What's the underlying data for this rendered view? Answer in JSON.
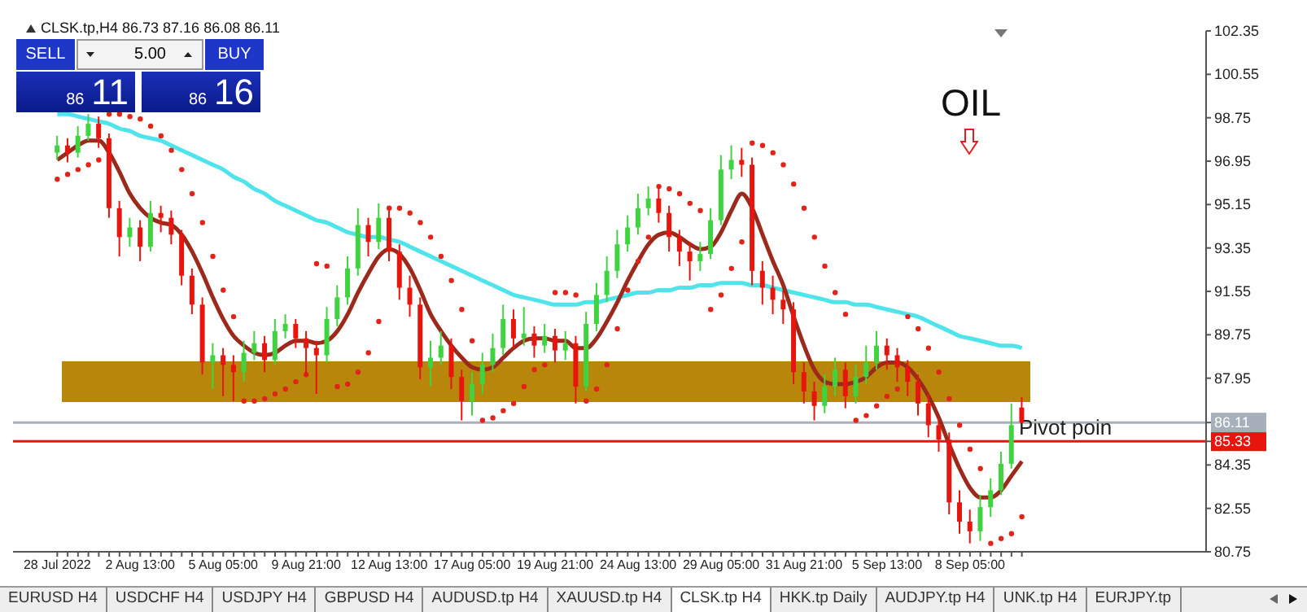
{
  "chart_data": {
    "type": "candlestick",
    "title": "CLSK.tp,H4  86.73 87.16 86.08 86.11",
    "categories": [
      "28 Jul 2022",
      null,
      null,
      null,
      null,
      null,
      null,
      null,
      "2 Aug 13:00",
      null,
      null,
      null,
      null,
      null,
      null,
      null,
      "5 Aug 05:00",
      null,
      null,
      null,
      null,
      null,
      null,
      null,
      "9 Aug 21:00",
      null,
      null,
      null,
      null,
      null,
      null,
      null,
      "12 Aug 13:00",
      null,
      null,
      null,
      null,
      null,
      null,
      null,
      "17 Aug 05:00",
      null,
      null,
      null,
      null,
      null,
      null,
      null,
      "19 Aug 21:00",
      null,
      null,
      null,
      null,
      null,
      null,
      null,
      "24 Aug 13:00",
      null,
      null,
      null,
      null,
      null,
      null,
      null,
      "29 Aug 05:00",
      null,
      null,
      null,
      null,
      null,
      null,
      null,
      "31 Aug 21:00",
      null,
      null,
      null,
      null,
      null,
      null,
      null,
      "5 Sep 13:00",
      null,
      null,
      null,
      null,
      null,
      null,
      null,
      "8 Sep 05:00",
      null,
      null,
      null,
      null,
      null
    ],
    "ohlc": [
      [
        97.3,
        98.0,
        97.0,
        97.6
      ],
      [
        97.6,
        97.9,
        96.9,
        97.3
      ],
      [
        97.3,
        98.4,
        97.1,
        98.0
      ],
      [
        98.0,
        98.9,
        97.8,
        98.5
      ],
      [
        98.5,
        98.8,
        97.5,
        97.9
      ],
      [
        97.9,
        98.1,
        94.6,
        95.0
      ],
      [
        95.0,
        95.3,
        93.0,
        93.8
      ],
      [
        93.8,
        94.6,
        93.4,
        94.2
      ],
      [
        94.2,
        94.5,
        92.8,
        93.4
      ],
      [
        93.4,
        95.3,
        93.2,
        94.8
      ],
      [
        94.8,
        95.1,
        94.0,
        94.6
      ],
      [
        94.6,
        94.9,
        93.5,
        93.9
      ],
      [
        93.9,
        94.1,
        91.8,
        92.2
      ],
      [
        92.2,
        92.5,
        90.6,
        91.0
      ],
      [
        91.0,
        91.3,
        88.1,
        88.6
      ],
      [
        88.6,
        89.4,
        87.5,
        88.9
      ],
      [
        88.9,
        89.2,
        87.2,
        88.5
      ],
      [
        88.5,
        88.9,
        87.0,
        88.2
      ],
      [
        88.2,
        89.5,
        87.8,
        89.0
      ],
      [
        89.0,
        89.9,
        88.7,
        89.4
      ],
      [
        89.4,
        89.7,
        88.2,
        88.7
      ],
      [
        88.7,
        90.4,
        88.5,
        89.9
      ],
      [
        89.9,
        90.6,
        89.6,
        90.2
      ],
      [
        90.2,
        90.4,
        89.2,
        89.6
      ],
      [
        89.6,
        89.9,
        88.0,
        89.2
      ],
      [
        89.2,
        89.5,
        87.3,
        88.9
      ],
      [
        88.9,
        90.9,
        88.6,
        90.4
      ],
      [
        90.4,
        91.8,
        90.1,
        91.3
      ],
      [
        91.3,
        93.0,
        91.0,
        92.5
      ],
      [
        92.5,
        95.0,
        92.2,
        94.3
      ],
      [
        94.3,
        94.6,
        93.0,
        93.6
      ],
      [
        93.6,
        95.2,
        93.3,
        94.6
      ],
      [
        94.6,
        94.9,
        92.8,
        93.2
      ],
      [
        93.2,
        93.5,
        91.2,
        91.7
      ],
      [
        91.7,
        92.2,
        90.5,
        91.0
      ],
      [
        91.0,
        91.3,
        87.9,
        88.4
      ],
      [
        88.4,
        89.5,
        87.6,
        88.8
      ],
      [
        88.8,
        89.9,
        88.5,
        89.3
      ],
      [
        89.3,
        89.6,
        87.5,
        88.0
      ],
      [
        88.0,
        88.3,
        86.2,
        87.0
      ],
      [
        87.0,
        88.2,
        86.4,
        87.7
      ],
      [
        87.7,
        89.0,
        87.3,
        88.5
      ],
      [
        88.5,
        89.8,
        88.2,
        89.2
      ],
      [
        89.2,
        91.0,
        88.9,
        90.4
      ],
      [
        90.4,
        90.8,
        89.2,
        89.6
      ],
      [
        89.6,
        90.9,
        89.3,
        89.8
      ],
      [
        89.8,
        90.1,
        88.8,
        89.3
      ],
      [
        89.3,
        90.2,
        89.0,
        89.7
      ],
      [
        89.7,
        90.0,
        88.6,
        89.1
      ],
      [
        89.1,
        89.9,
        88.7,
        89.4
      ],
      [
        89.4,
        89.7,
        86.9,
        87.6
      ],
      [
        87.6,
        90.7,
        87.4,
        90.2
      ],
      [
        90.2,
        91.9,
        89.9,
        91.4
      ],
      [
        91.4,
        93.0,
        91.1,
        92.4
      ],
      [
        92.4,
        94.1,
        92.1,
        93.5
      ],
      [
        93.5,
        94.7,
        93.2,
        94.2
      ],
      [
        94.2,
        95.6,
        93.9,
        95.0
      ],
      [
        95.0,
        95.9,
        94.7,
        95.4
      ],
      [
        95.4,
        95.8,
        94.4,
        94.8
      ],
      [
        94.8,
        95.1,
        93.2,
        93.8
      ],
      [
        93.8,
        94.1,
        92.6,
        93.2
      ],
      [
        93.2,
        93.6,
        92.0,
        92.8
      ],
      [
        92.8,
        93.6,
        92.4,
        93.1
      ],
      [
        93.1,
        95.0,
        92.9,
        94.5
      ],
      [
        94.5,
        97.2,
        94.3,
        96.6
      ],
      [
        96.6,
        97.6,
        96.2,
        97.0
      ],
      [
        97.0,
        97.5,
        96.3,
        96.8
      ],
      [
        96.8,
        97.1,
        91.8,
        92.4
      ],
      [
        92.4,
        92.8,
        91.0,
        91.7
      ],
      [
        91.7,
        92.2,
        90.6,
        91.2
      ],
      [
        91.2,
        91.6,
        90.2,
        90.8
      ],
      [
        90.8,
        91.1,
        87.7,
        88.2
      ],
      [
        88.2,
        88.6,
        86.9,
        87.4
      ],
      [
        87.4,
        87.8,
        86.2,
        86.8
      ],
      [
        86.8,
        88.1,
        86.5,
        87.6
      ],
      [
        87.6,
        88.8,
        87.2,
        88.3
      ],
      [
        88.3,
        88.6,
        86.7,
        87.2
      ],
      [
        87.2,
        88.5,
        86.9,
        88.0
      ],
      [
        88.0,
        89.3,
        87.7,
        88.6
      ],
      [
        88.6,
        89.9,
        88.3,
        89.3
      ],
      [
        89.3,
        89.6,
        88.3,
        88.9
      ],
      [
        88.9,
        89.2,
        87.8,
        88.4
      ],
      [
        88.4,
        88.7,
        87.2,
        87.8
      ],
      [
        87.8,
        88.1,
        86.4,
        86.9
      ],
      [
        86.9,
        87.3,
        85.5,
        86.0
      ],
      [
        86.0,
        86.3,
        84.9,
        85.4
      ],
      [
        85.4,
        85.7,
        82.3,
        82.8
      ],
      [
        82.8,
        83.3,
        81.5,
        82.0
      ],
      [
        82.0,
        82.5,
        81.1,
        81.6
      ],
      [
        81.6,
        83.1,
        81.2,
        82.6
      ],
      [
        82.6,
        83.8,
        82.2,
        83.3
      ],
      [
        83.3,
        84.9,
        83.1,
        84.4
      ],
      [
        84.4,
        86.9,
        84.2,
        86.0
      ],
      [
        86.73,
        87.16,
        86.08,
        86.11
      ]
    ],
    "colors": [
      "#3fd43f",
      "#e8150f",
      "#3fd43f",
      "#3fd43f",
      "#e8150f",
      "#e8150f",
      "#e8150f",
      "#3fd43f",
      "#e8150f",
      "#3fd43f",
      "#e8150f",
      "#e8150f",
      "#e8150f",
      "#e8150f",
      "#e8150f",
      "#3fd43f",
      "#e8150f",
      "#e8150f",
      "#3fd43f",
      "#3fd43f",
      "#e8150f",
      "#3fd43f",
      "#3fd43f",
      "#e8150f",
      "#e8150f",
      "#e8150f",
      "#3fd43f",
      "#3fd43f",
      "#3fd43f",
      "#3fd43f",
      "#e8150f",
      "#3fd43f",
      "#e8150f",
      "#e8150f",
      "#e8150f",
      "#e8150f",
      "#3fd43f",
      "#3fd43f",
      "#e8150f",
      "#e8150f",
      "#3fd43f",
      "#3fd43f",
      "#3fd43f",
      "#3fd43f",
      "#e8150f",
      "#3fd43f",
      "#e8150f",
      "#3fd43f",
      "#e8150f",
      "#3fd43f",
      "#e8150f",
      "#3fd43f",
      "#3fd43f",
      "#3fd43f",
      "#3fd43f",
      "#3fd43f",
      "#3fd43f",
      "#3fd43f",
      "#e8150f",
      "#e8150f",
      "#e8150f",
      "#e8150f",
      "#3fd43f",
      "#3fd43f",
      "#3fd43f",
      "#3fd43f",
      "#e8150f",
      "#e8150f",
      "#e8150f",
      "#e8150f",
      "#e8150f",
      "#e8150f",
      "#e8150f",
      "#e8150f",
      "#3fd43f",
      "#3fd43f",
      "#e8150f",
      "#3fd43f",
      "#3fd43f",
      "#3fd43f",
      "#e8150f",
      "#e8150f",
      "#e8150f",
      "#e8150f",
      "#e8150f",
      "#e8150f",
      "#e8150f",
      "#e8150f",
      "#e8150f",
      "#3fd43f",
      "#3fd43f",
      "#3fd43f",
      "#3fd43f",
      "#e8150f"
    ],
    "series": [
      {
        "type": "line",
        "color": "#4fe3ea",
        "values": [
          98.9,
          98.9,
          98.8,
          98.7,
          98.6,
          98.5,
          98.3,
          98.2,
          98.0,
          97.9,
          97.8,
          97.6,
          97.4,
          97.2,
          97.0,
          96.8,
          96.6,
          96.3,
          96.1,
          95.8,
          95.6,
          95.3,
          95.1,
          94.9,
          94.7,
          94.5,
          94.4,
          94.2,
          94.0,
          93.9,
          93.8,
          93.8,
          93.7,
          93.6,
          93.4,
          93.2,
          93.0,
          92.8,
          92.6,
          92.4,
          92.2,
          92.0,
          91.8,
          91.6,
          91.4,
          91.3,
          91.2,
          91.1,
          91.0,
          91.0,
          91.0,
          91.1,
          91.1,
          91.2,
          91.3,
          91.4,
          91.5,
          91.5,
          91.6,
          91.6,
          91.7,
          91.7,
          91.8,
          91.8,
          91.9,
          91.9,
          91.9,
          91.8,
          91.8,
          91.7,
          91.6,
          91.5,
          91.4,
          91.3,
          91.2,
          91.1,
          91.1,
          91.0,
          91.0,
          90.9,
          90.8,
          90.7,
          90.6,
          90.5,
          90.3,
          90.1,
          89.9,
          89.7,
          89.6,
          89.5,
          89.4,
          89.3,
          89.3,
          89.2
        ]
      },
      {
        "type": "line",
        "color": "#9b2a1c",
        "values": [
          97.0,
          97.3,
          97.6,
          97.8,
          97.8,
          97.3,
          96.5,
          95.6,
          95.0,
          94.6,
          94.4,
          94.3,
          93.9,
          93.2,
          92.3,
          91.3,
          90.4,
          89.7,
          89.3,
          89.0,
          88.9,
          89.0,
          89.3,
          89.5,
          89.5,
          89.4,
          89.5,
          89.9,
          90.6,
          91.5,
          92.3,
          93.0,
          93.3,
          93.1,
          92.5,
          91.6,
          90.6,
          89.9,
          89.3,
          88.8,
          88.4,
          88.3,
          88.4,
          88.8,
          89.2,
          89.5,
          89.6,
          89.6,
          89.5,
          89.5,
          89.2,
          89.2,
          89.6,
          90.3,
          91.1,
          92.0,
          92.8,
          93.5,
          93.9,
          94.0,
          93.8,
          93.5,
          93.3,
          93.4,
          94.0,
          94.9,
          95.6,
          95.0,
          93.9,
          92.8,
          91.8,
          90.5,
          89.3,
          88.3,
          87.8,
          87.7,
          87.7,
          87.8,
          88.0,
          88.4,
          88.6,
          88.6,
          88.4,
          87.9,
          87.2,
          86.3,
          85.2,
          84.2,
          83.4,
          83.0,
          83.0,
          83.3,
          83.9,
          84.5
        ]
      },
      {
        "type": "scatter",
        "color": "#e0241a",
        "marker": "circle",
        "values": [
          96.2,
          96.4,
          96.6,
          96.8,
          97.0,
          98.9,
          98.9,
          98.8,
          98.7,
          98.4,
          98.0,
          97.4,
          96.6,
          95.6,
          94.4,
          93.0,
          91.6,
          90.5,
          87.0,
          87.0,
          87.1,
          87.3,
          87.5,
          87.8,
          88.1,
          92.7,
          92.6,
          87.6,
          87.7,
          88.2,
          89.0,
          90.3,
          95.0,
          95.0,
          94.8,
          94.4,
          93.8,
          93.0,
          92.0,
          90.8,
          89.5,
          86.2,
          86.3,
          86.6,
          86.9,
          87.6,
          88.3,
          88.5,
          91.5,
          91.5,
          91.4,
          87.0,
          87.5,
          88.5,
          90.0,
          91.6,
          92.8,
          93.8,
          95.9,
          95.8,
          95.6,
          95.2,
          94.9,
          90.8,
          91.4,
          92.5,
          93.6,
          97.7,
          97.6,
          97.3,
          96.8,
          96.0,
          95.0,
          93.8,
          92.6,
          91.5,
          90.6,
          86.2,
          86.4,
          86.8,
          87.2,
          87.5,
          90.5,
          90.0,
          89.2,
          88.2,
          87.1,
          86.0,
          85.0,
          84.2,
          81.1,
          81.3,
          81.5,
          82.2
        ]
      }
    ],
    "ylim": [
      80.75,
      102.35
    ],
    "yticks": [
      80.75,
      82.55,
      84.35,
      {
        "value": 85.33,
        "label": "85.33"
      },
      {
        "value": 86.11,
        "label": "86.11"
      },
      87.95,
      89.75,
      91.55,
      93.35,
      95.15,
      96.95,
      98.75,
      100.55,
      102.35
    ],
    "bands": [
      {
        "axis": "y",
        "from": 86.96,
        "to": 88.65,
        "color": "#b8860b"
      }
    ],
    "ref_lines": [
      {
        "axis": "y",
        "value": 86.11,
        "label": "Pivot poin",
        "color": "#a7b0ba"
      },
      {
        "axis": "y",
        "value": 85.33,
        "color": "#e8150f"
      }
    ],
    "annotations": [
      "OIL",
      "SELL",
      "5.00",
      "BUY",
      "86 11",
      "86 16",
      "EURUSD H4",
      "USDCHF H4",
      "USDJPY H4",
      "GBPUSD H4",
      "AUDUSD.tp H4",
      "XAUUSD.tp H4",
      "CLSK.tp H4",
      "HKK.tp Daily",
      "AUDJPY.tp H4",
      "UNK.tp H4",
      "EURJPY.tp"
    ],
    "grid": false,
    "legend": false
  }
}
